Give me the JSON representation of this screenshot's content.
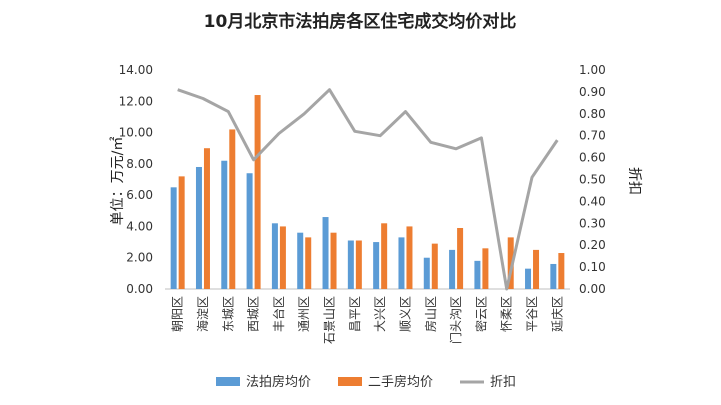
{
  "chart_data": {
    "type": "bar",
    "title": "10月北京市法拍房各区住宅成交均价对比",
    "ylabel": "单位：万元/㎡",
    "y2label": "折扣",
    "ylim": [
      0,
      14
    ],
    "y2lim": [
      0,
      1
    ],
    "yticks": [
      "0.00",
      "2.00",
      "4.00",
      "6.00",
      "8.00",
      "10.00",
      "12.00",
      "14.00"
    ],
    "y2ticks": [
      "0.00",
      "0.10",
      "0.20",
      "0.30",
      "0.40",
      "0.50",
      "0.60",
      "0.70",
      "0.80",
      "0.90",
      "1.00"
    ],
    "categories": [
      "朝阳区",
      "海淀区",
      "东城区",
      "西城区",
      "丰台区",
      "通州区",
      "石景山区",
      "昌平区",
      "大兴区",
      "顺义区",
      "房山区",
      "门头沟区",
      "密云区",
      "怀柔区",
      "平谷区",
      "延庆区"
    ],
    "series": [
      {
        "name": "法拍房均价",
        "type": "bar",
        "color": "#5B9BD5",
        "axis": "left",
        "values": [
          6.5,
          7.8,
          8.2,
          7.4,
          4.2,
          3.6,
          4.6,
          3.1,
          3.0,
          3.3,
          2.0,
          2.5,
          1.8,
          0.0,
          1.3,
          1.6
        ]
      },
      {
        "name": "二手房均价",
        "type": "bar",
        "color": "#ED7D31",
        "axis": "left",
        "values": [
          7.2,
          9.0,
          10.2,
          12.4,
          4.0,
          3.3,
          3.6,
          3.1,
          4.2,
          4.0,
          2.9,
          3.9,
          2.6,
          3.3,
          2.5,
          2.3
        ]
      },
      {
        "name": "折扣",
        "type": "line",
        "color": "#A5A5A5",
        "axis": "right",
        "values": [
          0.91,
          0.87,
          0.81,
          0.59,
          0.71,
          0.8,
          0.91,
          0.72,
          0.7,
          0.81,
          0.67,
          0.64,
          0.69,
          0.0,
          0.51,
          0.68
        ]
      }
    ],
    "legend_position": "bottom",
    "grid": false
  }
}
